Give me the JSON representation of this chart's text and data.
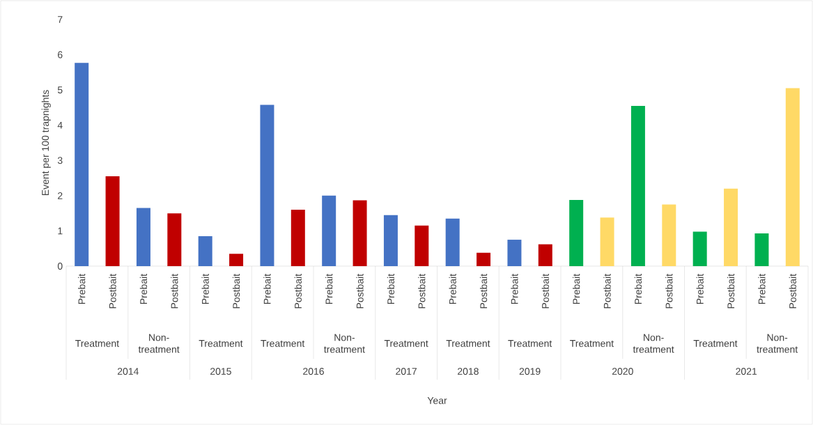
{
  "chart_data": {
    "type": "bar",
    "ylabel": "Event per 100 trapnights",
    "categories": [
      "Prebait",
      "Postbait",
      "Prebait",
      "Postbait",
      "Prebait",
      "Postbait",
      "Prebait",
      "Postbait",
      "Prebait",
      "Postbait",
      "Prebait",
      "Postbait",
      "Prebait",
      "Postbait",
      "Prebait",
      "Postbait",
      "Prebait",
      "Postbait",
      "Prebait",
      "Postbait",
      "Prebait",
      "Postbait",
      "Prebait",
      "Postbait"
    ],
    "values": [
      5.77,
      2.55,
      1.65,
      1.5,
      0.85,
      0.35,
      4.58,
      1.6,
      2.0,
      1.87,
      1.45,
      1.15,
      1.35,
      0.38,
      0.75,
      0.62,
      1.88,
      1.38,
      4.55,
      1.75,
      0.98,
      2.2,
      0.93,
      5.05
    ],
    "colors": [
      "#4472c4",
      "#c00000",
      "#4472c4",
      "#c00000",
      "#4472c4",
      "#c00000",
      "#4472c4",
      "#c00000",
      "#4472c4",
      "#c00000",
      "#4472c4",
      "#c00000",
      "#4472c4",
      "#c00000",
      "#4472c4",
      "#c00000",
      "#00b050",
      "#ffd966",
      "#00b050",
      "#ffd966",
      "#00b050",
      "#ffd966",
      "#00b050",
      "#ffd966"
    ],
    "ylim": [
      0,
      7
    ],
    "yticks": [
      0,
      1,
      2,
      3,
      4,
      5,
      6,
      7
    ],
    "annotations": [
      "Treatment",
      "Non-treatment",
      "Treatment",
      "Treatment",
      "Non-treatment",
      "Treatment",
      "Treatment",
      "Treatment",
      "Treatment",
      "Non-treatment",
      "Treatment",
      "Non-treatment",
      "2014",
      "2015",
      "2016",
      "2017",
      "2018",
      "2019",
      "2020",
      "2021",
      "Year"
    ]
  }
}
